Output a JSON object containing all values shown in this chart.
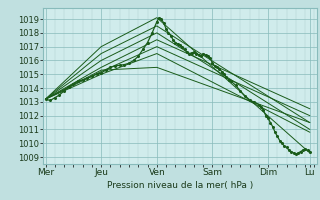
{
  "background_color": "#c0e0e0",
  "plot_bg_color": "#d0ecec",
  "grid_major_color": "#88bbbb",
  "grid_minor_color": "#aacccc",
  "line_color": "#1a5c1a",
  "xlabel_text": "Pression niveau de la mer( hPa )",
  "xtick_labels": [
    "Mer",
    "Jeu",
    "Ven",
    "Sam",
    "Dim",
    "Lu"
  ],
  "xtick_positions": [
    0,
    24,
    48,
    72,
    96,
    114
  ],
  "ylim": [
    1008.5,
    1019.8
  ],
  "yticks": [
    1009,
    1010,
    1011,
    1012,
    1013,
    1014,
    1015,
    1016,
    1017,
    1018,
    1019
  ],
  "xlim": [
    -1,
    117
  ],
  "detailed_series": [
    0,
    1013.2,
    2,
    1013.1,
    4,
    1013.3,
    6,
    1013.5,
    8,
    1013.8,
    10,
    1014.1,
    12,
    1014.3,
    14,
    1014.5,
    16,
    1014.6,
    18,
    1014.7,
    20,
    1014.85,
    22,
    1015.0,
    24,
    1015.1,
    26,
    1015.3,
    28,
    1015.5,
    30,
    1015.6,
    32,
    1015.65,
    34,
    1015.7,
    36,
    1015.8,
    38,
    1016.0,
    40,
    1016.3,
    42,
    1016.8,
    44,
    1017.3,
    46,
    1018.0,
    48,
    1018.8,
    49,
    1019.1,
    50,
    1019.0,
    51,
    1018.7,
    52,
    1018.3,
    53,
    1018.0,
    54,
    1017.8,
    55,
    1017.5,
    56,
    1017.3,
    57,
    1017.2,
    58,
    1017.1,
    59,
    1017.0,
    60,
    1016.8,
    61,
    1016.6,
    62,
    1016.5,
    63,
    1016.55,
    64,
    1016.6,
    65,
    1016.5,
    66,
    1016.4,
    67,
    1016.3,
    68,
    1016.5,
    69,
    1016.4,
    70,
    1016.3,
    71,
    1016.2,
    72,
    1015.8,
    73,
    1015.6,
    74,
    1015.5,
    75,
    1015.4,
    76,
    1015.2,
    77,
    1015.0,
    78,
    1014.8,
    79,
    1014.6,
    80,
    1014.5,
    82,
    1014.2,
    84,
    1013.8,
    86,
    1013.4,
    88,
    1013.1,
    90,
    1013.0,
    92,
    1012.8,
    93,
    1012.6,
    94,
    1012.4,
    95,
    1012.0,
    96,
    1011.8,
    97,
    1011.5,
    98,
    1011.2,
    99,
    1010.8,
    100,
    1010.5,
    101,
    1010.2,
    102,
    1010.0,
    103,
    1009.8,
    104,
    1009.7,
    105,
    1009.5,
    106,
    1009.4,
    107,
    1009.3,
    108,
    1009.2,
    109,
    1009.3,
    110,
    1009.4,
    111,
    1009.5,
    112,
    1009.6,
    113,
    1009.5,
    114,
    1009.4
  ],
  "forecast_lines": [
    [
      [
        0,
        1013.2
      ],
      [
        24,
        1015.3
      ],
      [
        48,
        1015.5
      ],
      [
        114,
        1011.5
      ]
    ],
    [
      [
        0,
        1013.2
      ],
      [
        24,
        1015.0
      ],
      [
        48,
        1016.5
      ],
      [
        114,
        1010.8
      ]
    ],
    [
      [
        0,
        1013.2
      ],
      [
        24,
        1015.2
      ],
      [
        48,
        1017.0
      ],
      [
        114,
        1012.0
      ]
    ],
    [
      [
        0,
        1013.2
      ],
      [
        24,
        1015.5
      ],
      [
        48,
        1017.5
      ],
      [
        114,
        1012.5
      ]
    ],
    [
      [
        0,
        1013.2
      ],
      [
        24,
        1016.0
      ],
      [
        48,
        1018.0
      ],
      [
        114,
        1011.0
      ]
    ],
    [
      [
        0,
        1013.2
      ],
      [
        24,
        1016.5
      ],
      [
        48,
        1018.5
      ],
      [
        114,
        1011.5
      ]
    ],
    [
      [
        0,
        1013.2
      ],
      [
        24,
        1017.0
      ],
      [
        48,
        1019.1
      ],
      [
        114,
        1009.3
      ]
    ]
  ]
}
